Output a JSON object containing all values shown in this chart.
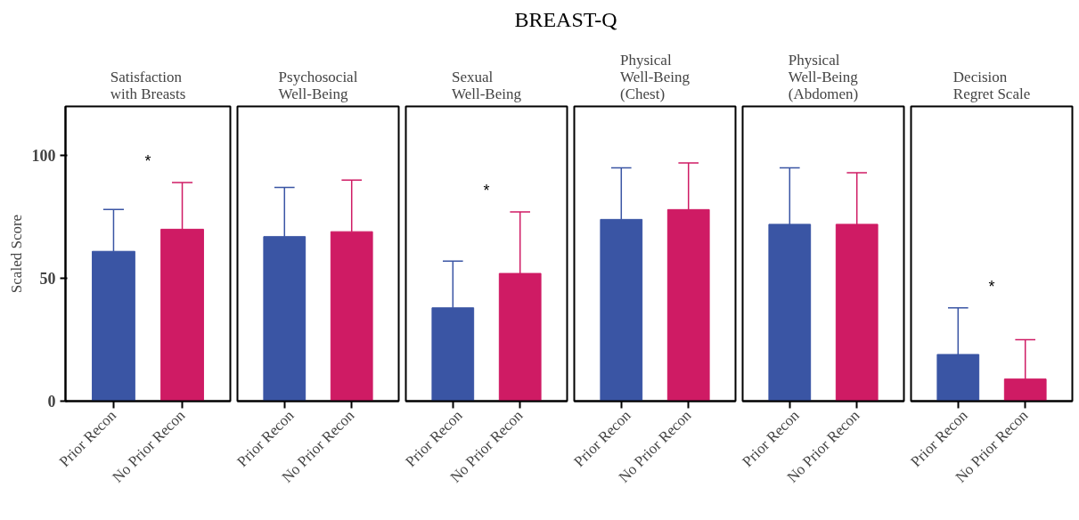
{
  "chart_data": [
    {
      "type": "bar",
      "title": "Satisfaction with Breasts",
      "ylabel": "Scaled Score",
      "categories": [
        "Prior Recon",
        "No Prior Recon"
      ],
      "values": [
        61,
        70
      ],
      "colors": [
        "#3a55a4",
        "#cf1b64"
      ],
      "errors": [
        [
          61,
          78
        ],
        [
          70,
          89
        ]
      ],
      "ylim": [
        0,
        120
      ],
      "yticks": [
        0,
        50,
        100
      ],
      "grid": false,
      "annotations": [
        "BREAST-Q",
        "*"
      ]
    },
    {
      "type": "bar",
      "title": "Psychosocial Well-Being",
      "categories": [
        "Prior Recon",
        "No Prior Recon"
      ],
      "values": [
        67,
        69
      ],
      "colors": [
        "#3a55a4",
        "#cf1b64"
      ],
      "errors": [
        [
          67,
          87
        ],
        [
          69,
          90
        ]
      ],
      "ylim": [
        0,
        120
      ],
      "yticks": [
        0,
        50,
        100
      ],
      "tick_labels": "x",
      "grid": false
    },
    {
      "type": "bar",
      "title": "Sexual Well-Being",
      "categories": [
        "Prior Recon",
        "No Prior Recon"
      ],
      "values": [
        38,
        52
      ],
      "colors": [
        "#3a55a4",
        "#cf1b64"
      ],
      "errors": [
        [
          38,
          57
        ],
        [
          52,
          77
        ]
      ],
      "ylim": [
        0,
        120
      ],
      "yticks": [
        0,
        50,
        100
      ],
      "tick_labels": "x",
      "grid": false,
      "annotations": [
        "*"
      ]
    },
    {
      "type": "bar",
      "title": "Physical Well-Being (Chest)",
      "categories": [
        "Prior Recon",
        "No Prior Recon"
      ],
      "values": [
        74,
        78
      ],
      "colors": [
        "#3a55a4",
        "#cf1b64"
      ],
      "errors": [
        [
          74,
          95
        ],
        [
          78,
          97
        ]
      ],
      "ylim": [
        0,
        120
      ],
      "yticks": [
        0,
        50,
        100
      ],
      "tick_labels": "x",
      "grid": false
    },
    {
      "type": "bar",
      "title": "Physical Well-Being (Abdomen)",
      "categories": [
        "Prior Recon",
        "No Prior Recon"
      ],
      "values": [
        72,
        72
      ],
      "colors": [
        "#3a55a4",
        "#cf1b64"
      ],
      "errors": [
        [
          72,
          95
        ],
        [
          72,
          93
        ]
      ],
      "ylim": [
        0,
        120
      ],
      "yticks": [
        0,
        50,
        100
      ],
      "tick_labels": "x",
      "grid": false
    },
    {
      "type": "bar",
      "title": "Decision Regret Scale",
      "categories": [
        "Prior Recon",
        "No Prior Recon"
      ],
      "values": [
        19,
        9
      ],
      "colors": [
        "#3a55a4",
        "#cf1b64"
      ],
      "errors": [
        [
          19,
          38
        ],
        [
          9,
          25
        ]
      ],
      "ylim": [
        0,
        120
      ],
      "yticks": [
        0,
        50,
        100
      ],
      "tick_labels": "x",
      "grid": false,
      "annotations": [
        "*"
      ]
    }
  ]
}
